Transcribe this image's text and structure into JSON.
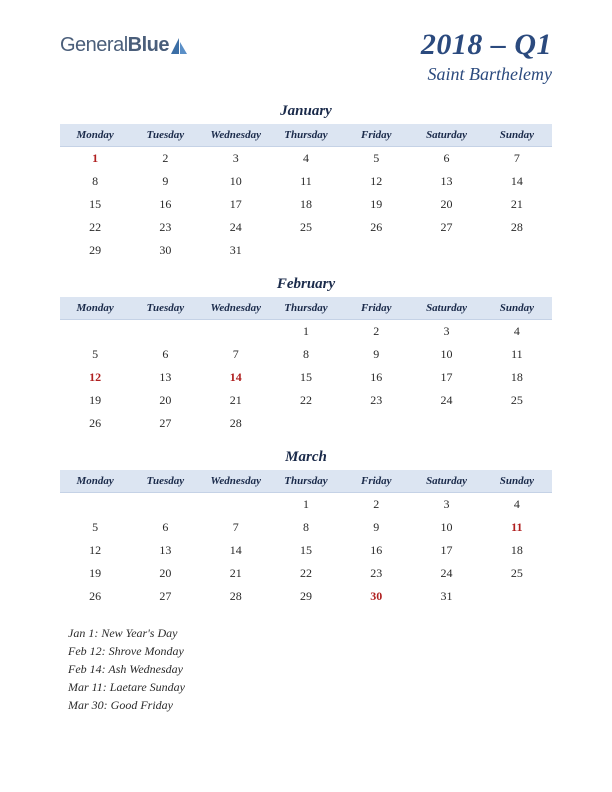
{
  "logo": {
    "text1": "General",
    "text2": "Blue"
  },
  "title": {
    "main": "2018 – Q1",
    "sub": "Saint Barthelemy"
  },
  "colors": {
    "header_bg": "#dce5f2",
    "text_dark": "#1a2a4a",
    "title_blue": "#2b4a7e",
    "holiday_red": "#b02020",
    "body_text": "#2a2a2a"
  },
  "weekdays": [
    "Monday",
    "Tuesday",
    "Wednesday",
    "Thursday",
    "Friday",
    "Saturday",
    "Sunday"
  ],
  "months": [
    {
      "name": "January",
      "weeks": [
        [
          {
            "d": "1",
            "h": true
          },
          {
            "d": "2"
          },
          {
            "d": "3"
          },
          {
            "d": "4"
          },
          {
            "d": "5"
          },
          {
            "d": "6"
          },
          {
            "d": "7"
          }
        ],
        [
          {
            "d": "8"
          },
          {
            "d": "9"
          },
          {
            "d": "10"
          },
          {
            "d": "11"
          },
          {
            "d": "12"
          },
          {
            "d": "13"
          },
          {
            "d": "14"
          }
        ],
        [
          {
            "d": "15"
          },
          {
            "d": "16"
          },
          {
            "d": "17"
          },
          {
            "d": "18"
          },
          {
            "d": "19"
          },
          {
            "d": "20"
          },
          {
            "d": "21"
          }
        ],
        [
          {
            "d": "22"
          },
          {
            "d": "23"
          },
          {
            "d": "24"
          },
          {
            "d": "25"
          },
          {
            "d": "26"
          },
          {
            "d": "27"
          },
          {
            "d": "28"
          }
        ],
        [
          {
            "d": "29"
          },
          {
            "d": "30"
          },
          {
            "d": "31"
          },
          {
            "d": ""
          },
          {
            "d": ""
          },
          {
            "d": ""
          },
          {
            "d": ""
          }
        ]
      ]
    },
    {
      "name": "February",
      "weeks": [
        [
          {
            "d": ""
          },
          {
            "d": ""
          },
          {
            "d": ""
          },
          {
            "d": "1"
          },
          {
            "d": "2"
          },
          {
            "d": "3"
          },
          {
            "d": "4"
          }
        ],
        [
          {
            "d": "5"
          },
          {
            "d": "6"
          },
          {
            "d": "7"
          },
          {
            "d": "8"
          },
          {
            "d": "9"
          },
          {
            "d": "10"
          },
          {
            "d": "11"
          }
        ],
        [
          {
            "d": "12",
            "h": true
          },
          {
            "d": "13"
          },
          {
            "d": "14",
            "h": true
          },
          {
            "d": "15"
          },
          {
            "d": "16"
          },
          {
            "d": "17"
          },
          {
            "d": "18"
          }
        ],
        [
          {
            "d": "19"
          },
          {
            "d": "20"
          },
          {
            "d": "21"
          },
          {
            "d": "22"
          },
          {
            "d": "23"
          },
          {
            "d": "24"
          },
          {
            "d": "25"
          }
        ],
        [
          {
            "d": "26"
          },
          {
            "d": "27"
          },
          {
            "d": "28"
          },
          {
            "d": ""
          },
          {
            "d": ""
          },
          {
            "d": ""
          },
          {
            "d": ""
          }
        ]
      ]
    },
    {
      "name": "March",
      "weeks": [
        [
          {
            "d": ""
          },
          {
            "d": ""
          },
          {
            "d": ""
          },
          {
            "d": "1"
          },
          {
            "d": "2"
          },
          {
            "d": "3"
          },
          {
            "d": "4"
          }
        ],
        [
          {
            "d": "5"
          },
          {
            "d": "6"
          },
          {
            "d": "7"
          },
          {
            "d": "8"
          },
          {
            "d": "9"
          },
          {
            "d": "10"
          },
          {
            "d": "11",
            "h": true
          }
        ],
        [
          {
            "d": "12"
          },
          {
            "d": "13"
          },
          {
            "d": "14"
          },
          {
            "d": "15"
          },
          {
            "d": "16"
          },
          {
            "d": "17"
          },
          {
            "d": "18"
          }
        ],
        [
          {
            "d": "19"
          },
          {
            "d": "20"
          },
          {
            "d": "21"
          },
          {
            "d": "22"
          },
          {
            "d": "23"
          },
          {
            "d": "24"
          },
          {
            "d": "25"
          }
        ],
        [
          {
            "d": "26"
          },
          {
            "d": "27"
          },
          {
            "d": "28"
          },
          {
            "d": "29"
          },
          {
            "d": "30",
            "h": true
          },
          {
            "d": "31"
          },
          {
            "d": ""
          }
        ]
      ]
    }
  ],
  "holidays_list": [
    "Jan 1: New Year's Day",
    "Feb 12: Shrove Monday",
    "Feb 14: Ash Wednesday",
    "Mar 11: Laetare Sunday",
    "Mar 30: Good Friday"
  ]
}
